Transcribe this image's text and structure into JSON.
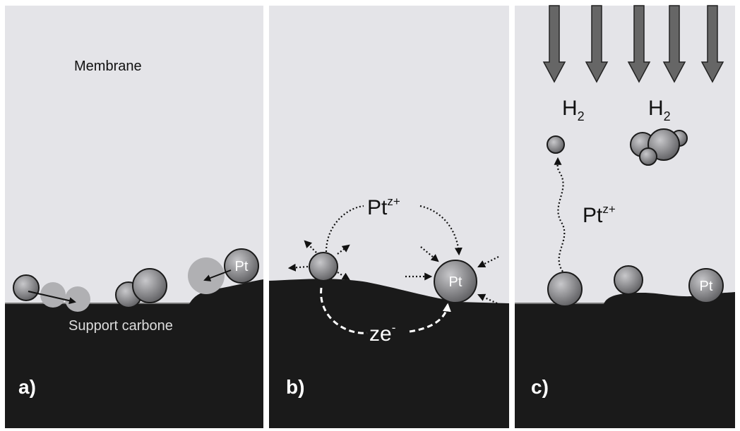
{
  "panels": [
    {
      "label": "a)",
      "membrane": "Membrane",
      "support": "Support carbone",
      "particle": "Pt"
    },
    {
      "label": "b)",
      "ion": {
        "base": "Pt",
        "sup": "z+"
      },
      "electron": {
        "base": "ze",
        "sup": "-"
      },
      "particle": "Pt"
    },
    {
      "label": "c)",
      "gas": [
        {
          "base": "H",
          "sub": "2"
        },
        {
          "base": "H",
          "sub": "2"
        }
      ],
      "ion": {
        "base": "Pt",
        "sup": "z+"
      },
      "particle": "Pt"
    }
  ]
}
